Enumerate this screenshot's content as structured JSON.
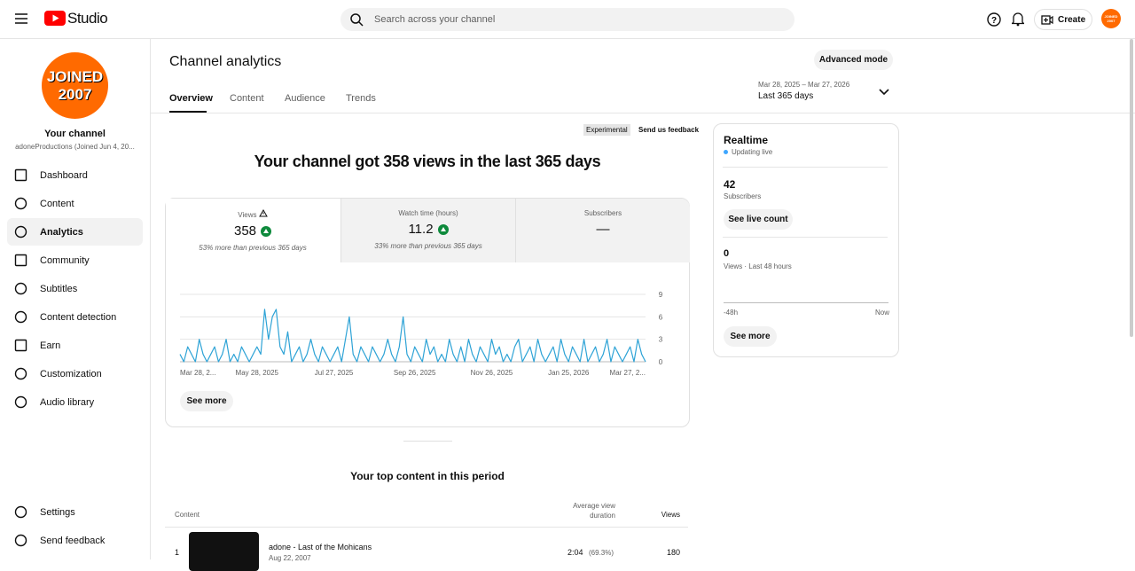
{
  "header": {
    "logo": "Studio",
    "search_placeholder": "Search across your channel",
    "create": "Create",
    "avatar_top": "JOINED",
    "avatar_bottom": "2007"
  },
  "sidebar": {
    "avatar_top": "JOINED",
    "avatar_bottom": "2007",
    "channel_label": "Your channel",
    "channel_name": "adoneProductions (Joined Jun 4, 20...",
    "nav": [
      "Dashboard",
      "Content",
      "Analytics",
      "Community",
      "Subtitles",
      "Content detection",
      "Earn",
      "Customization",
      "Audio library"
    ],
    "footer": [
      "Settings",
      "Send feedback"
    ]
  },
  "main": {
    "title": "Channel analytics",
    "advanced_mode": "Advanced mode",
    "tabs": [
      "Overview",
      "Content",
      "Audience",
      "Trends"
    ],
    "date_range": "Mar 28, 2025 – Mar 27, 2026",
    "period": "Last 365 days",
    "badge": "Experimental",
    "feedback": "Send us feedback",
    "headline": "Your channel got 358 views in the last 365 days",
    "metrics": [
      {
        "label": "Views",
        "value": "358",
        "note": "53% more than previous 365 days"
      },
      {
        "label": "Watch time (hours)",
        "value": "11.2",
        "note": "33% more than previous 365 days"
      },
      {
        "label": "Subscribers",
        "value": "—"
      }
    ],
    "see_more": "See more"
  },
  "chart_data": {
    "type": "line",
    "color": "#2ea3d6",
    "grid": true,
    "values": [
      1,
      0,
      2,
      1,
      0,
      3,
      1,
      0,
      1,
      2,
      0,
      1,
      3,
      0,
      1,
      0,
      2,
      1,
      0,
      1,
      2,
      1,
      7,
      3,
      6,
      7,
      2,
      1,
      4,
      0,
      1,
      2,
      0,
      1,
      3,
      1,
      0,
      2,
      1,
      0,
      1,
      2,
      0,
      3,
      6,
      1,
      0,
      2,
      1,
      0,
      2,
      1,
      0,
      1,
      3,
      1,
      0,
      2,
      6,
      1,
      0,
      2,
      1,
      0,
      3,
      1,
      2,
      0,
      1,
      0,
      3,
      1,
      0,
      2,
      0,
      3,
      1,
      0,
      2,
      1,
      0,
      3,
      1,
      2,
      0,
      1,
      0,
      2,
      3,
      0,
      1,
      2,
      0,
      3,
      1,
      0,
      1,
      2,
      0,
      3,
      1,
      0,
      2,
      1,
      0,
      3,
      0,
      1,
      2,
      0,
      1,
      3,
      0,
      2,
      1,
      0,
      1,
      2,
      0,
      3,
      1,
      0
    ],
    "xlim": [
      0,
      121
    ],
    "xticks": [
      {
        "value": 0,
        "label": "Mar 28, 2..."
      },
      {
        "value": 20,
        "label": "May 28, 2025"
      },
      {
        "value": 40,
        "label": "Jul 27, 2025"
      },
      {
        "value": 61,
        "label": "Sep 26, 2025"
      },
      {
        "value": 81,
        "label": "Nov 26, 2025"
      },
      {
        "value": 101,
        "label": "Jan 25, 2026"
      },
      {
        "value": 121,
        "label": "Mar 27, 2..."
      }
    ],
    "ylim": [
      0,
      9
    ],
    "yticks": [
      0,
      3,
      6,
      9
    ]
  },
  "top_content": {
    "title": "Your top content in this period",
    "columns": [
      "Content",
      "Average view duration",
      "Views"
    ],
    "rows": [
      {
        "rank": "1",
        "title": "adone - Last of the Mohicans",
        "date": "Aug 22, 2007",
        "duration": "2:04",
        "percent": "(69.3%)",
        "views": "180"
      }
    ]
  },
  "realtime": {
    "title": "Realtime",
    "status": "Updating live",
    "subscribers": "42",
    "subscribers_label": "Subscribers",
    "live_count": "See live count",
    "views": "0",
    "views_label": "Views · Last 48 hours",
    "axis_start": "-48h",
    "axis_end": "Now",
    "see_more": "See more"
  }
}
